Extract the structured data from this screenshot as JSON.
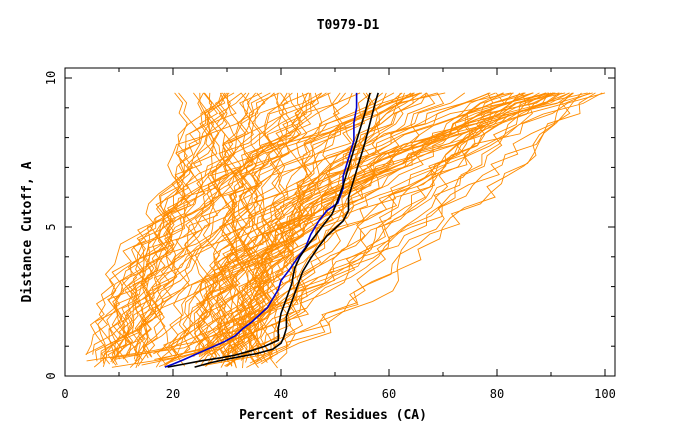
{
  "chart_data": {
    "type": "line",
    "title": "T0979-D1",
    "xlabel": "Percent of Residues (CA)",
    "ylabel": "Distance Cutoff, A",
    "xlim": [
      0,
      100
    ],
    "ylim": [
      0,
      10
    ],
    "x_ticks": [
      0,
      20,
      40,
      60,
      80,
      100
    ],
    "x_tick_labels": [
      "0",
      "20",
      "40",
      "60",
      "80",
      "100"
    ],
    "y_ticks": [
      0,
      5,
      10
    ],
    "y_tick_labels": [
      "0",
      "5",
      "10"
    ],
    "grid": false,
    "legend": "none",
    "colors": {
      "background": "#ffffff",
      "axes": "#000000",
      "other": "#ff8c00",
      "blue": "#0000cc",
      "black": "#000000"
    },
    "series": [
      {
        "color": "#0000cc",
        "points": [
          [
            18.5,
            0.3
          ],
          [
            20.0,
            0.4
          ],
          [
            22.0,
            0.55
          ],
          [
            24.5,
            0.75
          ],
          [
            27.0,
            0.95
          ],
          [
            29.5,
            1.15
          ],
          [
            31.5,
            1.35
          ],
          [
            33.0,
            1.6
          ],
          [
            34.5,
            1.8
          ],
          [
            36.0,
            2.05
          ],
          [
            37.5,
            2.3
          ],
          [
            38.5,
            2.6
          ],
          [
            39.5,
            2.9
          ],
          [
            40.0,
            3.2
          ],
          [
            41.5,
            3.55
          ],
          [
            43.0,
            3.95
          ],
          [
            44.5,
            4.3
          ],
          [
            45.5,
            4.75
          ],
          [
            47.0,
            5.2
          ],
          [
            48.5,
            5.55
          ],
          [
            50.5,
            5.8
          ],
          [
            51.5,
            6.3
          ],
          [
            51.5,
            6.7
          ],
          [
            52.5,
            7.3
          ],
          [
            53.5,
            7.9
          ],
          [
            53.5,
            8.5
          ],
          [
            54.0,
            9.0
          ],
          [
            54.0,
            9.5
          ]
        ]
      },
      {
        "color": "#000000",
        "points": [
          [
            24.0,
            0.3
          ],
          [
            27.0,
            0.45
          ],
          [
            31.0,
            0.6
          ],
          [
            35.5,
            0.75
          ],
          [
            38.5,
            0.9
          ],
          [
            40.0,
            1.1
          ],
          [
            40.5,
            1.3
          ],
          [
            41.0,
            1.6
          ],
          [
            41.0,
            2.0
          ],
          [
            42.0,
            2.5
          ],
          [
            43.0,
            3.0
          ],
          [
            44.0,
            3.5
          ],
          [
            45.5,
            3.95
          ],
          [
            47.0,
            4.35
          ],
          [
            48.5,
            4.7
          ],
          [
            50.0,
            4.95
          ],
          [
            51.5,
            5.2
          ],
          [
            52.5,
            5.55
          ],
          [
            52.5,
            6.0
          ],
          [
            53.5,
            6.6
          ],
          [
            54.5,
            7.2
          ],
          [
            55.5,
            7.8
          ],
          [
            56.5,
            8.5
          ],
          [
            57.5,
            9.2
          ],
          [
            58.0,
            9.5
          ]
        ]
      },
      {
        "color": "#000000",
        "points": [
          [
            19.0,
            0.3
          ],
          [
            22.0,
            0.4
          ],
          [
            25.0,
            0.5
          ],
          [
            28.5,
            0.6
          ],
          [
            31.5,
            0.7
          ],
          [
            34.5,
            0.85
          ],
          [
            37.0,
            1.0
          ],
          [
            39.5,
            1.2
          ],
          [
            39.5,
            1.6
          ],
          [
            40.0,
            2.1
          ],
          [
            41.0,
            2.6
          ],
          [
            42.0,
            3.1
          ],
          [
            42.5,
            3.6
          ],
          [
            43.5,
            4.0
          ],
          [
            45.0,
            4.4
          ],
          [
            46.5,
            4.75
          ],
          [
            48.0,
            5.1
          ],
          [
            49.5,
            5.45
          ],
          [
            50.5,
            5.9
          ],
          [
            51.5,
            6.4
          ],
          [
            52.5,
            7.0
          ],
          [
            53.5,
            7.6
          ],
          [
            54.5,
            8.2
          ],
          [
            55.5,
            8.8
          ],
          [
            56.5,
            9.5
          ]
        ]
      }
    ]
  }
}
